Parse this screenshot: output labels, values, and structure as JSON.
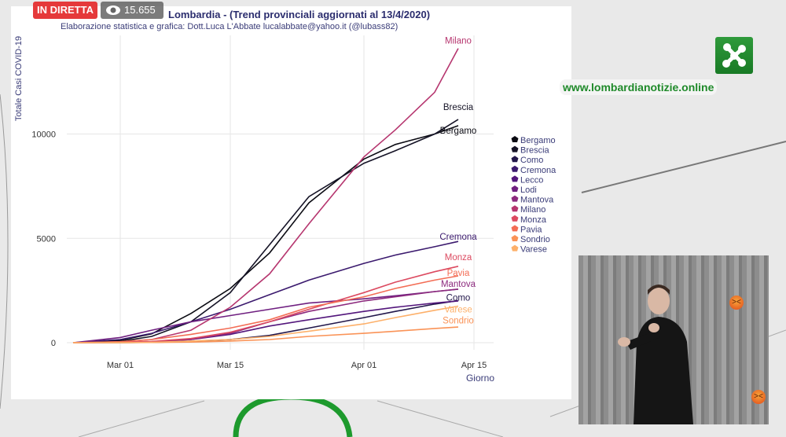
{
  "stream": {
    "live_label": "IN DIRETTA",
    "view_count": "15.655",
    "views_icon": "eye-icon"
  },
  "branding": {
    "site": "www.lombardianotizie.online",
    "logo_icon": "lombardia-region-logo"
  },
  "reactions": [
    "angry-emoji-icon",
    "angry-emoji-icon"
  ],
  "chart_data": {
    "type": "line",
    "title": "Lombardia - (Trend provinciali aggiornati al 13/4/2020)",
    "subtitle": "Elaborazione statistica e grafica: Dott.Luca L'Abbate  lucalabbate@yahoo.it  (@lubass82)",
    "xlabel": "Giorno",
    "ylabel": "Totale Casi COVID-19",
    "x_ticks": [
      "Mar 01",
      "Mar 15",
      "Apr 01",
      "Apr 15"
    ],
    "x_tick_dates": [
      "2020-03-01",
      "2020-03-15",
      "2020-04-01",
      "2020-04-15"
    ],
    "y_ticks": [
      "0",
      "5000",
      "10000"
    ],
    "y_tick_values": [
      0,
      5000,
      10000
    ],
    "xlim": [
      "2020-02-19",
      "2020-04-18"
    ],
    "ylim": [
      0,
      14700
    ],
    "grid": true,
    "legend_position": "right",
    "x": [
      "2020-02-24",
      "2020-03-01",
      "2020-03-05",
      "2020-03-10",
      "2020-03-15",
      "2020-03-20",
      "2020-03-25",
      "2020-04-01",
      "2020-04-05",
      "2020-04-10",
      "2020-04-13"
    ],
    "series": [
      {
        "name": "Bergamo",
        "color": "#0a0a12",
        "values": [
          0,
          110,
          420,
          1400,
          2600,
          4300,
          6700,
          8800,
          9500,
          10000,
          10400
        ]
      },
      {
        "name": "Brescia",
        "color": "#151326",
        "values": [
          0,
          60,
          300,
          1000,
          2400,
          4700,
          7000,
          8600,
          9200,
          10000,
          10700
        ]
      },
      {
        "name": "Como",
        "color": "#22174a",
        "values": [
          0,
          5,
          15,
          60,
          150,
          350,
          700,
          1200,
          1500,
          1850,
          2020
        ]
      },
      {
        "name": "Cremona",
        "color": "#3b1a6e",
        "values": [
          0,
          150,
          450,
          1000,
          1600,
          2300,
          3000,
          3800,
          4200,
          4600,
          4850
        ]
      },
      {
        "name": "Lecco",
        "color": "#53167c",
        "values": [
          0,
          10,
          40,
          150,
          400,
          800,
          1100,
          1500,
          1700,
          1900,
          2000
        ]
      },
      {
        "name": "Lodi",
        "color": "#6f1f80",
        "values": [
          0,
          250,
          600,
          1000,
          1300,
          1600,
          1900,
          2100,
          2250,
          2450,
          2560
        ]
      },
      {
        "name": "Mantova",
        "color": "#8c2a7e",
        "values": [
          0,
          10,
          30,
          150,
          450,
          1000,
          1500,
          2000,
          2200,
          2450,
          2570
        ]
      },
      {
        "name": "Milano",
        "color": "#b6366f",
        "values": [
          0,
          40,
          150,
          600,
          1700,
          3300,
          5700,
          8900,
          10200,
          12000,
          14100
        ]
      },
      {
        "name": "Monza",
        "color": "#dc4a60",
        "values": [
          0,
          20,
          60,
          200,
          500,
          1000,
          1600,
          2400,
          2900,
          3400,
          3660
        ]
      },
      {
        "name": "Pavia",
        "color": "#f36d55",
        "values": [
          0,
          50,
          150,
          400,
          700,
          1100,
          1700,
          2200,
          2600,
          3000,
          3200
        ]
      },
      {
        "name": "Sondrio",
        "color": "#fa9357",
        "values": [
          0,
          2,
          10,
          30,
          80,
          150,
          300,
          450,
          550,
          680,
          750
        ]
      },
      {
        "name": "Varese",
        "color": "#fdb06a",
        "values": [
          0,
          5,
          20,
          80,
          150,
          300,
          550,
          900,
          1200,
          1550,
          1750
        ]
      }
    ]
  }
}
